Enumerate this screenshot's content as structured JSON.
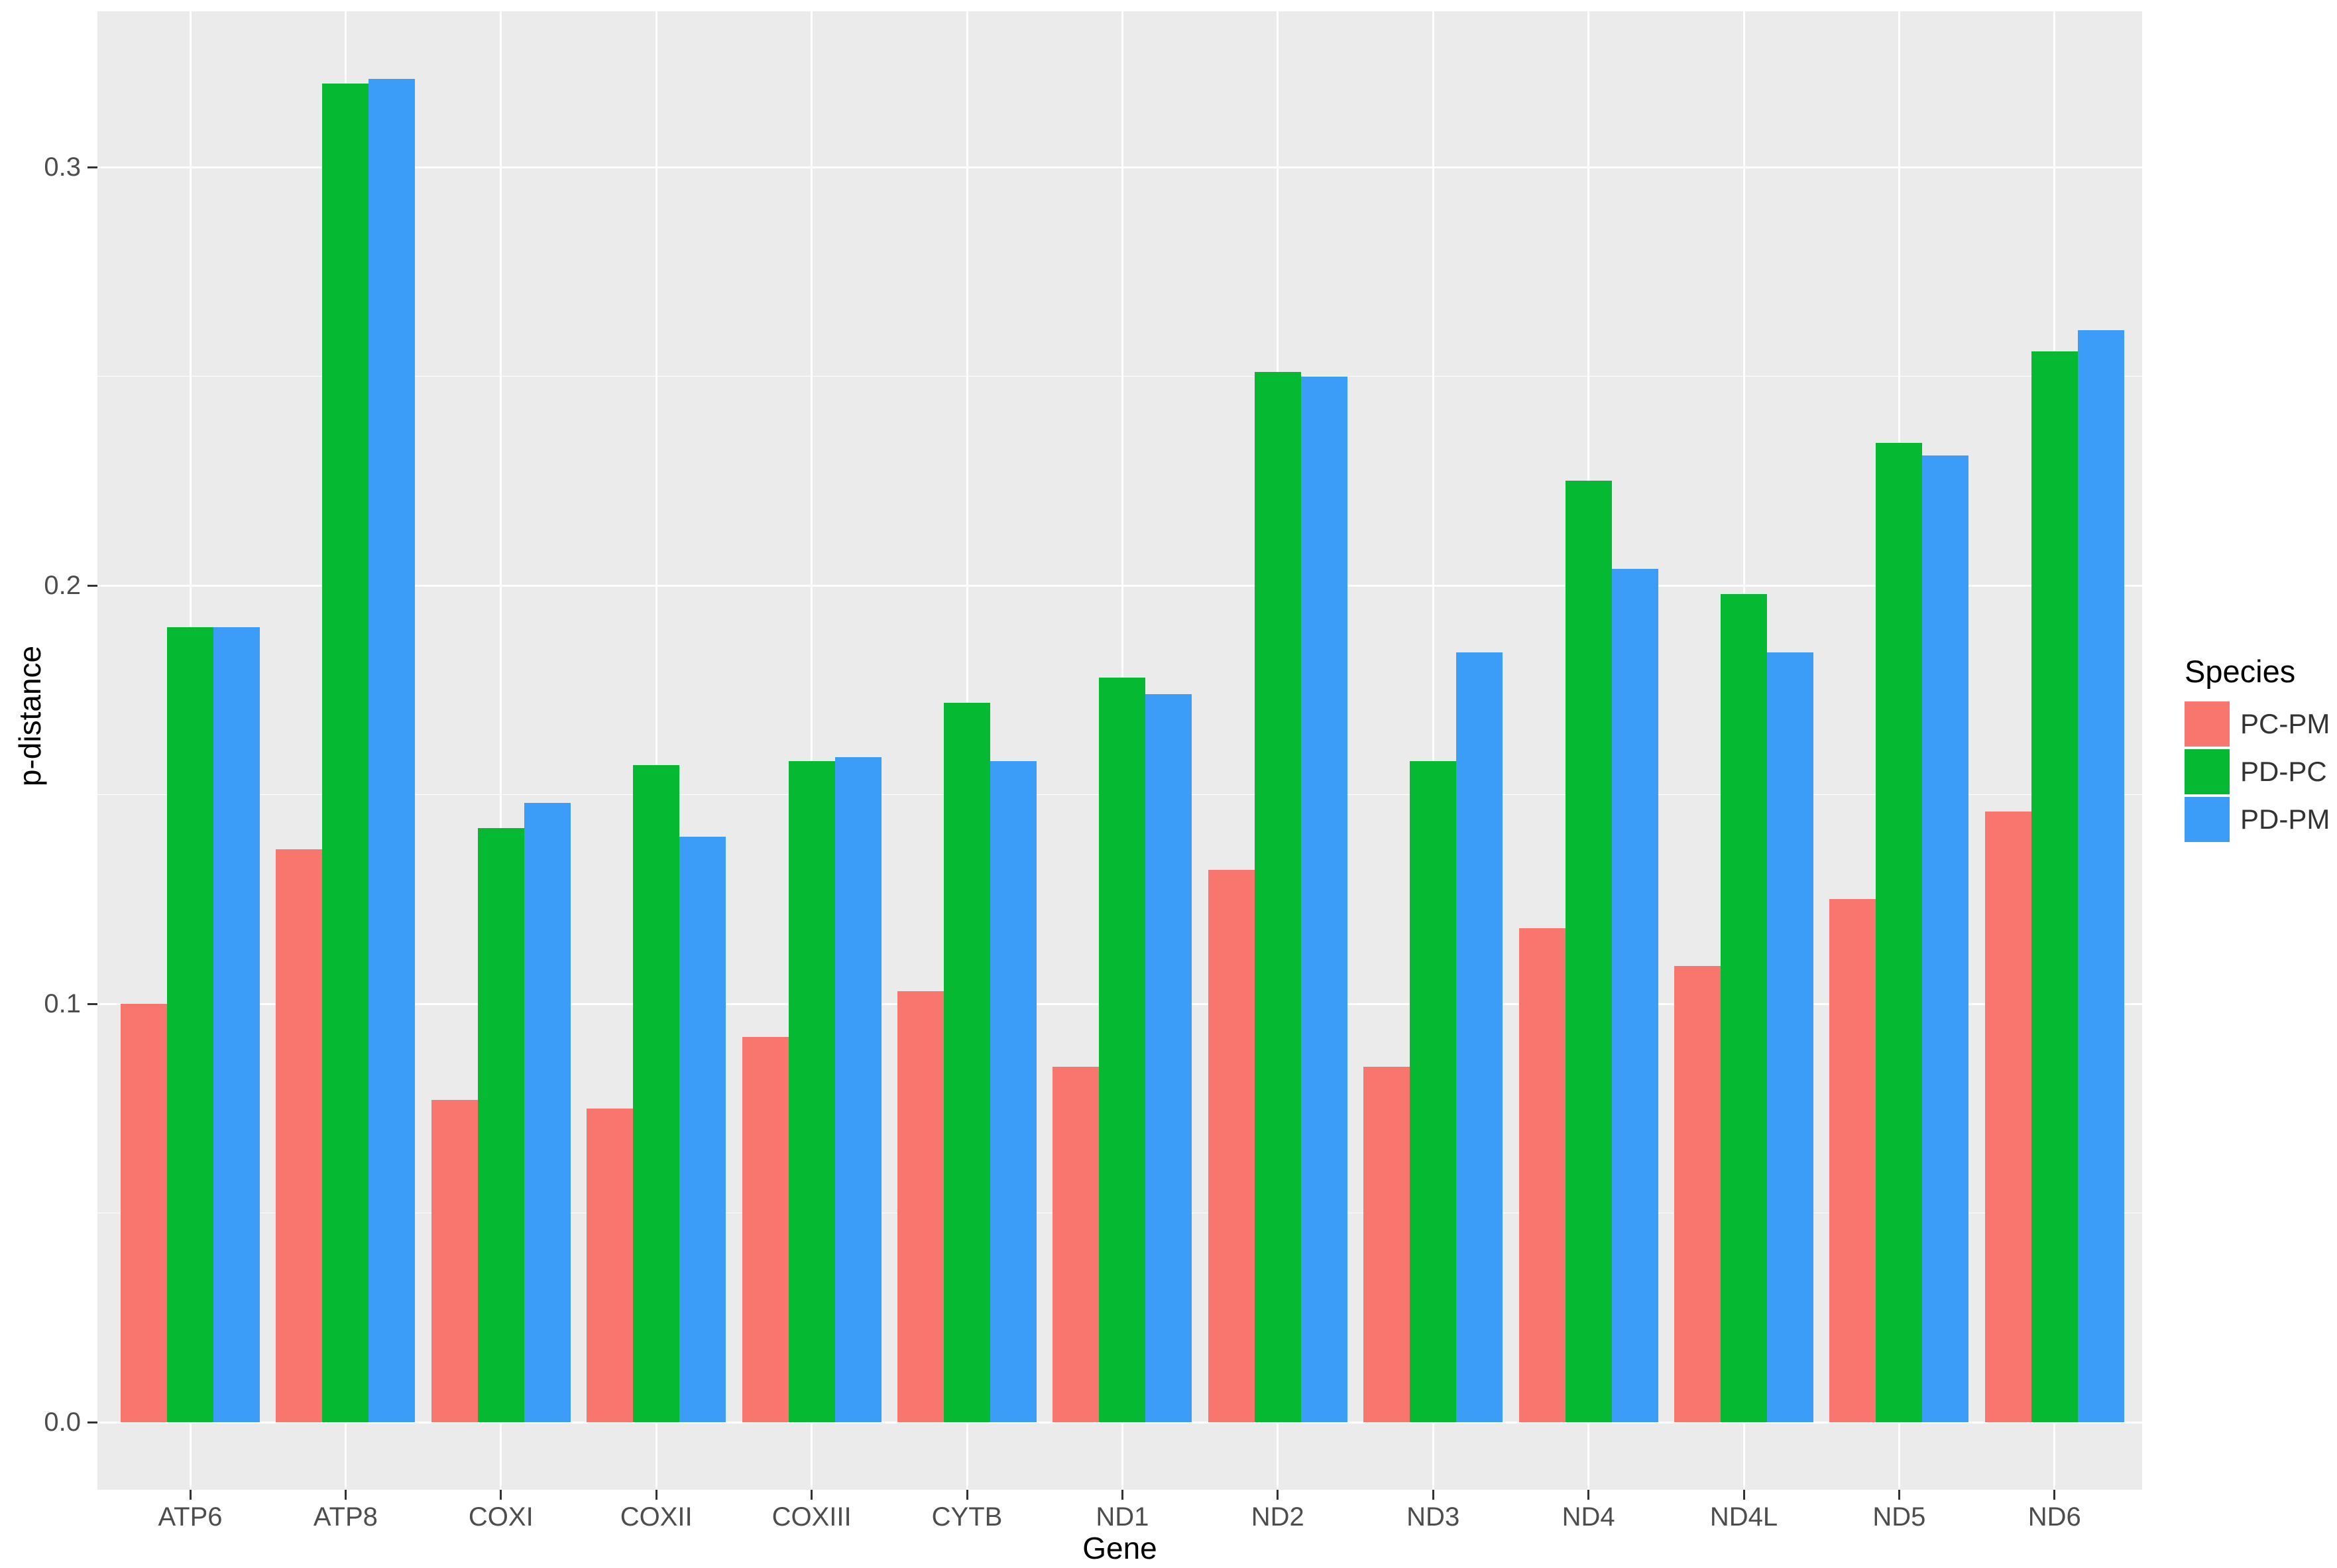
{
  "chart_data": {
    "type": "bar",
    "title": "",
    "xlabel": "Gene",
    "ylabel": "p-distance",
    "legend_title": "Species",
    "legend_position": "right",
    "grid": true,
    "categories": [
      "ATP6",
      "ATP8",
      "COXI",
      "COXII",
      "COXIII",
      "CYTB",
      "ND1",
      "ND2",
      "ND3",
      "ND4",
      "ND4L",
      "ND5",
      "ND6"
    ],
    "series": [
      {
        "name": "PC-PM",
        "color": "#F8766D",
        "values": [
          0.1,
          0.137,
          0.077,
          0.075,
          0.092,
          0.103,
          0.085,
          0.132,
          0.085,
          0.118,
          0.109,
          0.125,
          0.146
        ]
      },
      {
        "name": "PD-PC",
        "color": "#05B932",
        "values": [
          0.19,
          0.32,
          0.142,
          0.157,
          0.158,
          0.172,
          0.178,
          0.251,
          0.158,
          0.225,
          0.198,
          0.234,
          0.256
        ]
      },
      {
        "name": "PD-PM",
        "color": "#3C9DF8",
        "values": [
          0.19,
          0.321,
          0.148,
          0.14,
          0.159,
          0.158,
          0.174,
          0.25,
          0.184,
          0.204,
          0.184,
          0.231,
          0.261
        ]
      }
    ],
    "y_ticks": [
      0,
      0.1,
      0.2,
      0.3
    ],
    "y_tick_labels": [
      "0.0",
      "0.1",
      "0.2",
      "0.3"
    ],
    "minor_gridlines": [
      0.05,
      0.15,
      0.25
    ],
    "ylim": [
      0,
      0.337
    ],
    "colors": {
      "panel_background": "#EBEBEB",
      "gridline": "#FFFFFF",
      "axis_text": "#4D4D4D",
      "axis_title_text": "#000000",
      "tick_mark": "#333333"
    }
  }
}
